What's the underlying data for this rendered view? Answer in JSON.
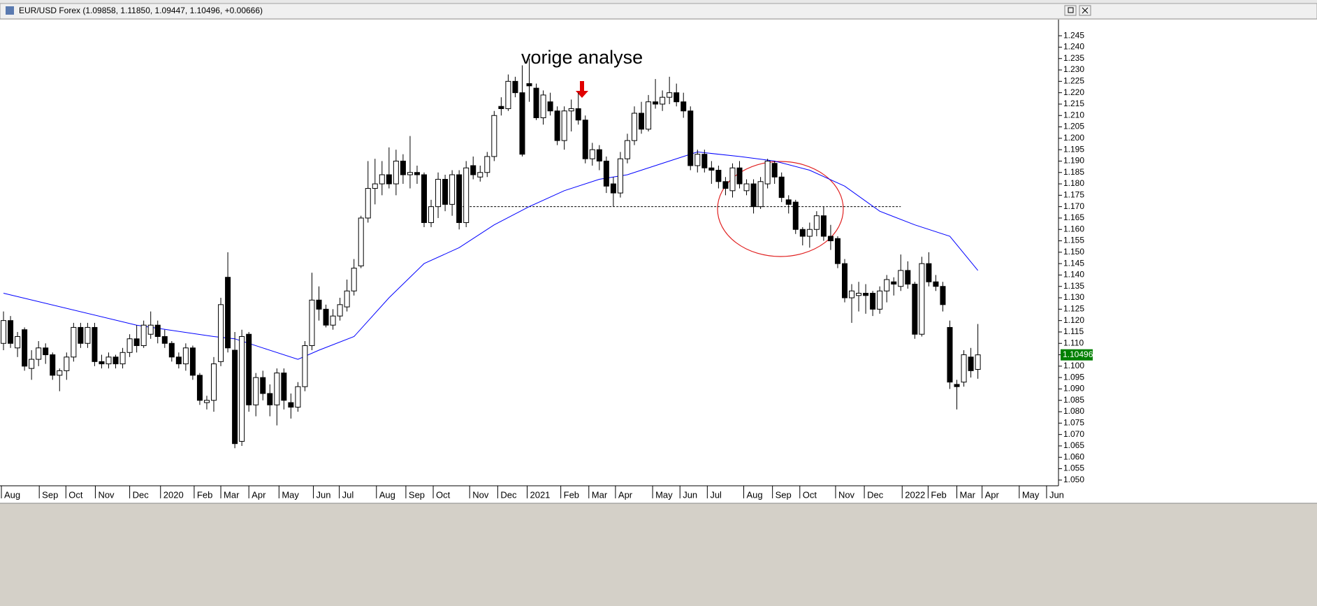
{
  "chart_data": {
    "type": "candlestick",
    "title": "EUR/USD Forex (1.09858, 1.11850, 1.09447, 1.10496, +0.00666)",
    "annotation": "vorige analyse",
    "up_color": "#ffffff",
    "down_color": "#000000",
    "xlim": [
      -0.5,
      150.5
    ],
    "ylim": [
      1.0475,
      1.2521
    ],
    "yticks": [
      {
        "value": 1.05,
        "label": "1.050"
      },
      1.055,
      {
        "value": 1.06,
        "label": "1.060"
      },
      1.065,
      {
        "value": 1.07,
        "label": "1.070"
      },
      1.075,
      {
        "value": 1.08,
        "label": "1.080"
      },
      1.085,
      {
        "value": 1.09,
        "label": "1.090"
      },
      1.095,
      {
        "value": 1.1,
        "label": "1.100"
      },
      1.105,
      {
        "value": 1.11,
        "label": "1.110"
      },
      1.115,
      {
        "value": 1.12,
        "label": "1.120"
      },
      1.125,
      {
        "value": 1.13,
        "label": "1.130"
      },
      1.135,
      {
        "value": 1.14,
        "label": "1.140"
      },
      1.145,
      {
        "value": 1.15,
        "label": "1.150"
      },
      1.155,
      {
        "value": 1.16,
        "label": "1.160"
      },
      1.165,
      {
        "value": 1.17,
        "label": "1.170"
      },
      1.175,
      {
        "value": 1.18,
        "label": "1.180"
      },
      1.185,
      {
        "value": 1.19,
        "label": "1.190"
      },
      1.195,
      {
        "value": 1.2,
        "label": "1.200"
      },
      1.205,
      {
        "value": 1.21,
        "label": "1.210"
      },
      1.215,
      {
        "value": 1.22,
        "label": "1.220"
      },
      1.225,
      {
        "value": 1.23,
        "label": "1.230"
      },
      1.235,
      {
        "value": 1.24,
        "label": "1.240"
      },
      1.245
    ],
    "xticks": [
      {
        "value": -0.3,
        "label": "Aug"
      },
      {
        "value": 5.1,
        "label": "Sep"
      },
      {
        "value": 8.9,
        "label": "Oct"
      },
      {
        "value": 13.1,
        "label": "Nov"
      },
      {
        "value": 18.0,
        "label": "Dec"
      },
      {
        "value": 22.4,
        "label": "2020"
      },
      {
        "value": 27.2,
        "label": "Feb"
      },
      {
        "value": 31.0,
        "label": "Mar"
      },
      {
        "value": 35.0,
        "label": "Apr"
      },
      {
        "value": 39.3,
        "label": "May"
      },
      {
        "value": 44.2,
        "label": "Jun"
      },
      {
        "value": 47.9,
        "label": "Jul"
      },
      {
        "value": 53.2,
        "label": "Aug"
      },
      {
        "value": 57.4,
        "label": "Sep"
      },
      {
        "value": 61.3,
        "label": "Oct"
      },
      {
        "value": 66.5,
        "label": "Nov"
      },
      {
        "value": 70.5,
        "label": "Dec"
      },
      {
        "value": 74.7,
        "label": "2021"
      },
      {
        "value": 79.5,
        "label": "Feb"
      },
      {
        "value": 83.5,
        "label": "Mar"
      },
      {
        "value": 87.3,
        "label": "Apr"
      },
      {
        "value": 92.6,
        "label": "May"
      },
      {
        "value": 96.5,
        "label": "Jun"
      },
      {
        "value": 100.4,
        "label": "Jul"
      },
      {
        "value": 105.6,
        "label": "Aug"
      },
      {
        "value": 109.7,
        "label": "Sep"
      },
      {
        "value": 113.6,
        "label": "Oct"
      },
      {
        "value": 118.7,
        "label": "Nov"
      },
      {
        "value": 122.8,
        "label": "Dec"
      },
      {
        "value": 128.2,
        "label": "2022"
      },
      {
        "value": 131.9,
        "label": "Feb"
      },
      {
        "value": 136.0,
        "label": "Mar"
      },
      {
        "value": 139.6,
        "label": "Apr"
      },
      {
        "value": 144.9,
        "label": "May"
      },
      {
        "value": 148.8,
        "label": "Jun"
      }
    ],
    "candles": {
      "open": [
        1.11,
        1.12,
        1.108,
        1.116,
        1.099,
        1.103,
        1.108,
        1.105,
        1.096,
        1.098,
        1.104,
        1.117,
        1.11,
        1.117,
        1.102,
        1.101,
        1.104,
        1.101,
        1.106,
        1.112,
        1.109,
        1.114,
        1.118,
        1.113,
        1.11,
        1.104,
        1.101,
        1.108,
        1.096,
        1.084,
        1.085,
        1.102,
        1.139,
        1.107,
        1.067,
        1.114,
        1.083,
        1.095,
        1.088,
        1.083,
        1.097,
        1.084,
        1.082,
        1.091,
        1.109,
        1.129,
        1.125,
        1.118,
        1.122,
        1.126,
        1.133,
        1.144,
        1.165,
        1.178,
        1.18,
        1.184,
        1.18,
        1.19,
        1.184,
        1.185,
        1.184,
        1.163,
        1.17,
        1.182,
        1.171,
        1.184,
        1.163,
        1.188,
        1.183,
        1.185,
        1.192,
        1.214,
        1.213,
        1.225,
        1.22,
        1.224,
        1.222,
        1.209,
        1.216,
        1.212,
        1.199,
        1.212,
        1.213,
        1.208,
        1.191,
        1.195,
        1.19,
        1.18,
        1.176,
        1.191,
        1.199,
        1.211,
        1.204,
        1.216,
        1.215,
        1.218,
        1.22,
        1.216,
        1.212,
        1.188,
        1.193,
        1.187,
        1.186,
        1.181,
        1.177,
        1.187,
        1.177,
        1.18,
        1.17,
        1.18,
        1.189,
        1.183,
        1.173,
        1.172,
        1.16,
        1.157,
        1.16,
        1.166,
        1.157,
        1.156,
        1.145,
        1.13,
        1.131,
        1.132,
        1.132,
        1.125,
        1.133,
        1.137,
        1.135,
        1.142,
        1.136,
        1.114,
        1.145,
        1.137,
        1.135,
        1.117,
        1.092,
        1.093,
        1.104,
        1.09858
      ],
      "high": [
        1.124,
        1.122,
        1.115,
        1.117,
        1.107,
        1.111,
        1.11,
        1.106,
        1.099,
        1.106,
        1.119,
        1.119,
        1.119,
        1.119,
        1.105,
        1.106,
        1.105,
        1.108,
        1.114,
        1.118,
        1.12,
        1.124,
        1.12,
        1.116,
        1.111,
        1.106,
        1.11,
        1.109,
        1.097,
        1.087,
        1.104,
        1.13,
        1.15,
        1.115,
        1.116,
        1.115,
        1.097,
        1.098,
        1.092,
        1.099,
        1.099,
        1.088,
        1.093,
        1.111,
        1.141,
        1.135,
        1.127,
        1.125,
        1.13,
        1.138,
        1.147,
        1.166,
        1.19,
        1.191,
        1.19,
        1.196,
        1.195,
        1.193,
        1.201,
        1.188,
        1.185,
        1.173,
        1.185,
        1.184,
        1.186,
        1.186,
        1.19,
        1.192,
        1.188,
        1.194,
        1.212,
        1.218,
        1.228,
        1.227,
        1.232,
        1.235,
        1.224,
        1.221,
        1.22,
        1.214,
        1.214,
        1.217,
        1.22,
        1.21,
        1.198,
        1.197,
        1.192,
        1.183,
        1.194,
        1.202,
        1.214,
        1.216,
        1.219,
        1.226,
        1.221,
        1.227,
        1.224,
        1.22,
        1.214,
        1.195,
        1.195,
        1.19,
        1.188,
        1.183,
        1.189,
        1.19,
        1.182,
        1.182,
        1.183,
        1.191,
        1.19,
        1.185,
        1.175,
        1.173,
        1.161,
        1.163,
        1.168,
        1.17,
        1.162,
        1.157,
        1.147,
        1.136,
        1.137,
        1.136,
        1.133,
        1.135,
        1.14,
        1.139,
        1.149,
        1.146,
        1.137,
        1.148,
        1.15,
        1.14,
        1.137,
        1.12,
        1.094,
        1.107,
        1.108,
        1.1185
      ],
      "low": [
        1.107,
        1.108,
        1.104,
        1.098,
        1.094,
        1.1,
        1.101,
        1.094,
        1.089,
        1.094,
        1.102,
        1.108,
        1.108,
        1.1,
        1.099,
        1.099,
        1.099,
        1.099,
        1.104,
        1.106,
        1.108,
        1.112,
        1.11,
        1.108,
        1.102,
        1.099,
        1.098,
        1.094,
        1.083,
        1.081,
        1.08,
        1.1,
        1.106,
        1.064,
        1.065,
        1.08,
        1.078,
        1.085,
        1.078,
        1.074,
        1.081,
        1.077,
        1.08,
        1.089,
        1.107,
        1.12,
        1.117,
        1.116,
        1.12,
        1.124,
        1.131,
        1.143,
        1.163,
        1.171,
        1.175,
        1.178,
        1.175,
        1.18,
        1.178,
        1.18,
        1.161,
        1.161,
        1.165,
        1.168,
        1.166,
        1.16,
        1.161,
        1.182,
        1.181,
        1.183,
        1.19,
        1.21,
        1.212,
        1.218,
        1.192,
        1.216,
        1.208,
        1.206,
        1.21,
        1.197,
        1.195,
        1.203,
        1.206,
        1.189,
        1.188,
        1.186,
        1.176,
        1.17,
        1.174,
        1.189,
        1.197,
        1.202,
        1.203,
        1.213,
        1.212,
        1.215,
        1.214,
        1.209,
        1.186,
        1.185,
        1.185,
        1.18,
        1.178,
        1.175,
        1.174,
        1.178,
        1.175,
        1.167,
        1.169,
        1.178,
        1.18,
        1.172,
        1.167,
        1.158,
        1.153,
        1.152,
        1.157,
        1.155,
        1.151,
        1.143,
        1.128,
        1.119,
        1.124,
        1.123,
        1.122,
        1.123,
        1.128,
        1.131,
        1.133,
        1.134,
        1.112,
        1.113,
        1.135,
        1.133,
        1.124,
        1.09,
        1.081,
        1.091,
        1.095,
        1.09447
      ],
      "close": [
        1.12,
        1.11,
        1.113,
        1.1,
        1.103,
        1.108,
        1.105,
        1.096,
        1.098,
        1.104,
        1.117,
        1.11,
        1.117,
        1.102,
        1.101,
        1.104,
        1.101,
        1.106,
        1.112,
        1.109,
        1.118,
        1.118,
        1.113,
        1.11,
        1.104,
        1.101,
        1.108,
        1.096,
        1.085,
        1.085,
        1.101,
        1.127,
        1.108,
        1.066,
        1.113,
        1.083,
        1.095,
        1.088,
        1.083,
        1.097,
        1.085,
        1.082,
        1.091,
        1.109,
        1.129,
        1.125,
        1.118,
        1.122,
        1.127,
        1.133,
        1.143,
        1.165,
        1.178,
        1.18,
        1.184,
        1.18,
        1.19,
        1.184,
        1.185,
        1.184,
        1.163,
        1.17,
        1.182,
        1.171,
        1.184,
        1.163,
        1.187,
        1.184,
        1.185,
        1.192,
        1.21,
        1.213,
        1.225,
        1.22,
        1.193,
        1.223,
        1.209,
        1.219,
        1.212,
        1.199,
        1.212,
        1.213,
        1.208,
        1.191,
        1.195,
        1.19,
        1.179,
        1.176,
        1.191,
        1.199,
        1.211,
        1.204,
        1.216,
        1.215,
        1.218,
        1.22,
        1.216,
        1.212,
        1.188,
        1.193,
        1.187,
        1.186,
        1.181,
        1.178,
        1.187,
        1.18,
        1.18,
        1.17,
        1.181,
        1.19,
        1.183,
        1.174,
        1.171,
        1.16,
        1.157,
        1.16,
        1.166,
        1.157,
        1.155,
        1.145,
        1.13,
        1.133,
        1.132,
        1.131,
        1.125,
        1.133,
        1.138,
        1.136,
        1.142,
        1.136,
        1.114,
        1.145,
        1.137,
        1.135,
        1.127,
        1.093,
        1.091,
        1.105,
        1.098,
        1.10496
      ]
    },
    "moving_average": {
      "color": "#0000ff",
      "x": [
        0,
        19,
        30,
        33,
        37,
        42,
        45,
        50,
        55,
        60,
        65,
        70,
        75,
        80,
        85,
        89,
        95,
        99,
        105,
        110,
        115,
        120,
        125,
        130,
        135,
        139
      ],
      "values": [
        1.132,
        1.118,
        1.113,
        1.112,
        1.108,
        1.103,
        1.107,
        1.113,
        1.13,
        1.145,
        1.152,
        1.162,
        1.17,
        1.177,
        1.182,
        1.184,
        1.19,
        1.194,
        1.192,
        1.19,
        1.186,
        1.179,
        1.168,
        1.162,
        1.157,
        1.142
      ]
    },
    "level_line": {
      "value": 1.17,
      "x": [
        65.5,
        128
      ]
    },
    "last_price": {
      "value": 1.10496,
      "color": "#008000"
    }
  }
}
